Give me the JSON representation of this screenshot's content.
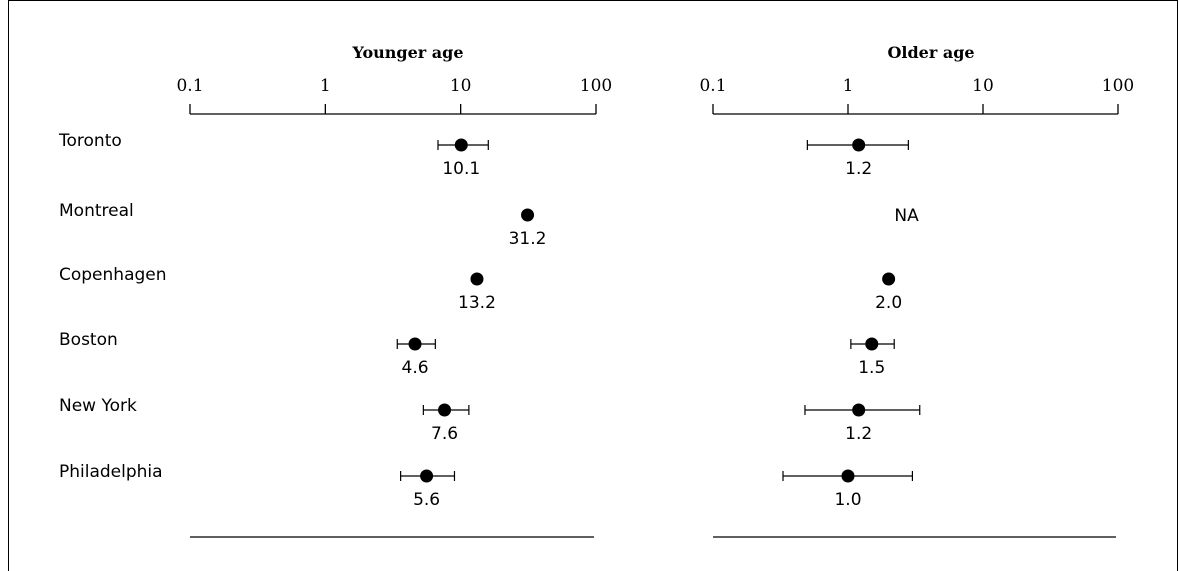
{
  "chart_data": [
    {
      "type": "scatter",
      "title": "Younger age",
      "x_scale": "log",
      "xlim": [
        0.1,
        100
      ],
      "x_ticks": [
        "0.1",
        "1",
        "10",
        "100"
      ],
      "x_tick_values": [
        0.1,
        1,
        10,
        100
      ],
      "categories": [
        "Toronto",
        "Montreal",
        "Copenhagen",
        "Boston",
        "New York",
        "Philadelphia"
      ],
      "points": [
        {
          "city": "Toronto",
          "value": 10.1,
          "label": "10.1",
          "ci": [
            6.8,
            16.0
          ]
        },
        {
          "city": "Montreal",
          "value": 31.2,
          "label": "31.2",
          "ci": null
        },
        {
          "city": "Copenhagen",
          "value": 13.2,
          "label": "13.2",
          "ci": null
        },
        {
          "city": "Boston",
          "value": 4.6,
          "label": "4.6",
          "ci": [
            3.4,
            6.5
          ]
        },
        {
          "city": "New York",
          "value": 7.6,
          "label": "7.6",
          "ci": [
            5.3,
            11.5
          ]
        },
        {
          "city": "Philadelphia",
          "value": 5.6,
          "label": "5.6",
          "ci": [
            3.6,
            9.0
          ]
        }
      ]
    },
    {
      "type": "scatter",
      "title": "Older age",
      "x_scale": "log",
      "xlim": [
        0.1,
        100
      ],
      "x_ticks": [
        "0.1",
        "1",
        "10",
        "100"
      ],
      "x_tick_values": [
        0.1,
        1,
        10,
        100
      ],
      "categories": [
        "Toronto",
        "Montreal",
        "Copenhagen",
        "Boston",
        "New York",
        "Philadelphia"
      ],
      "points": [
        {
          "city": "Toronto",
          "value": 1.2,
          "label": "1.2",
          "ci": [
            0.5,
            2.8
          ]
        },
        {
          "city": "Montreal",
          "value": null,
          "label": "NA",
          "ci": null
        },
        {
          "city": "Copenhagen",
          "value": 2.0,
          "label": "2.0",
          "ci": null
        },
        {
          "city": "Boston",
          "value": 1.5,
          "label": "1.5",
          "ci": [
            1.05,
            2.2
          ]
        },
        {
          "city": "New York",
          "value": 1.2,
          "label": "1.2",
          "ci": [
            0.48,
            3.4
          ]
        },
        {
          "city": "Philadelphia",
          "value": 1.0,
          "label": "1.0",
          "ci": [
            0.33,
            3.0
          ]
        }
      ]
    }
  ]
}
